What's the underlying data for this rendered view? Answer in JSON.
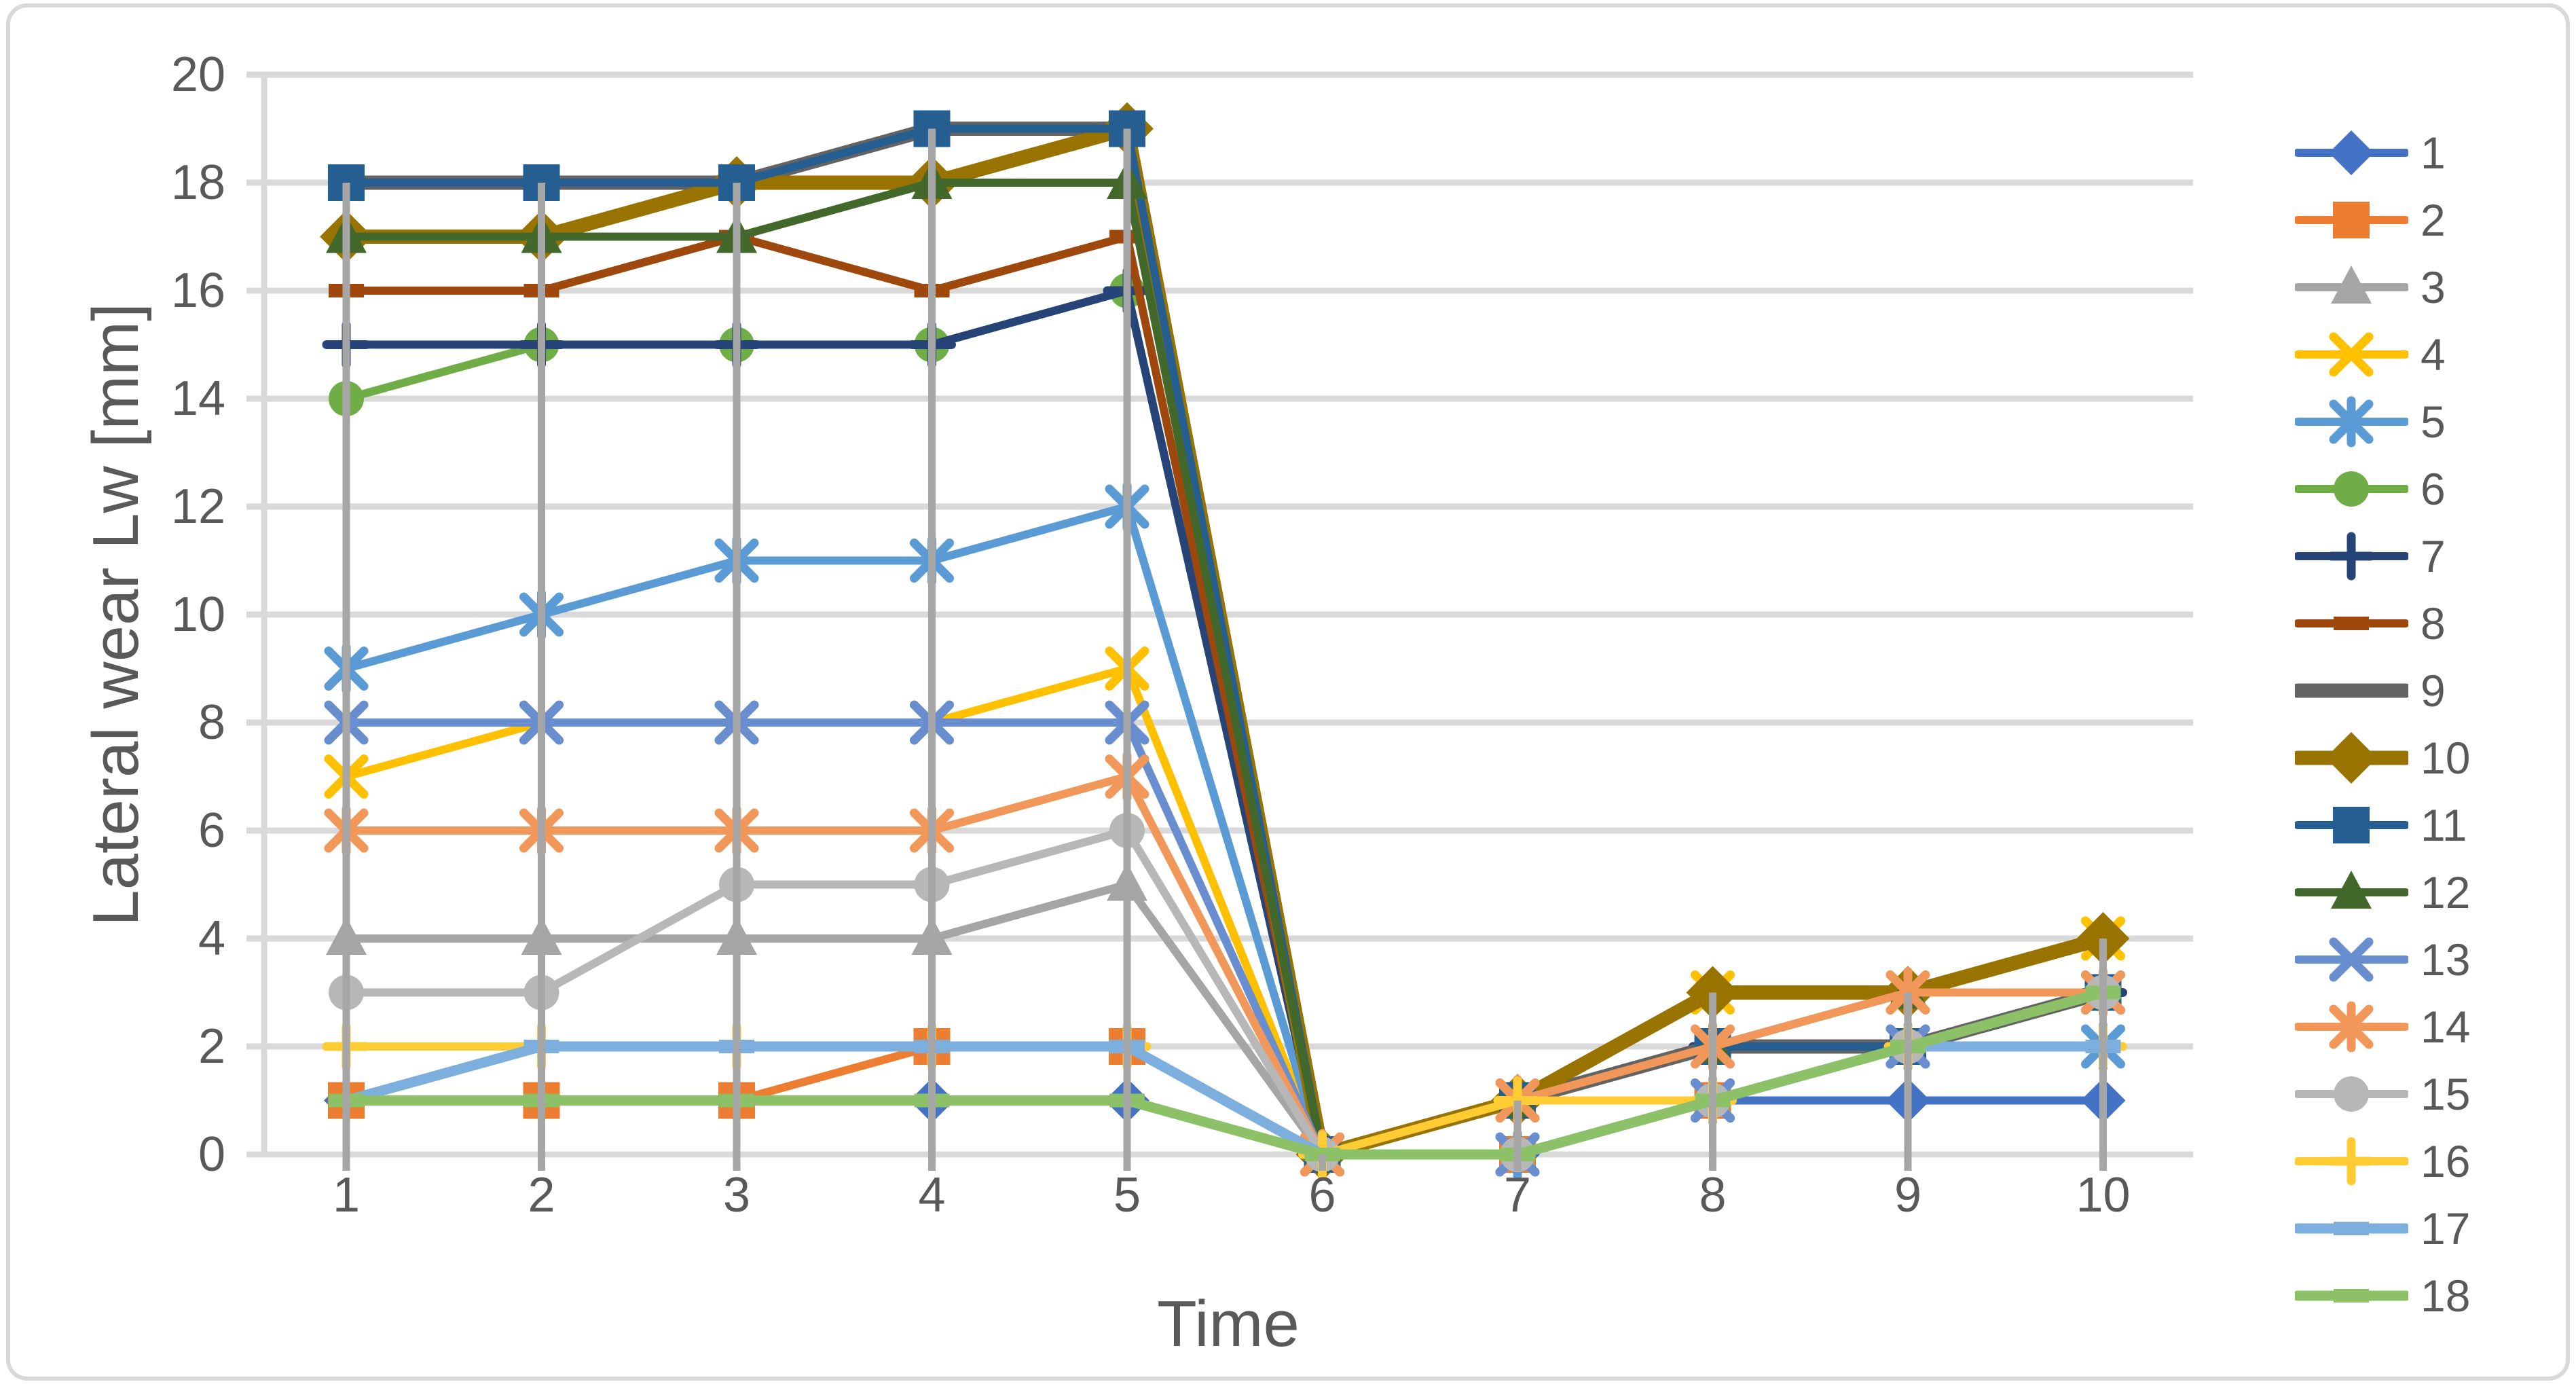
{
  "chart_data": {
    "type": "line",
    "title": "",
    "xlabel": "Time",
    "ylabel": "Lateral wear Lw [mm]",
    "x": [
      1,
      2,
      3,
      4,
      5,
      6,
      7,
      8,
      9,
      10
    ],
    "x_tick_labels": [
      "1",
      "2",
      "3",
      "4",
      "5",
      "6",
      "7",
      "8",
      "9",
      "10"
    ],
    "ylim": [
      0,
      20
    ],
    "y_tick_step": 2,
    "y_tick_labels": [
      "0",
      "2",
      "4",
      "6",
      "8",
      "10",
      "12",
      "14",
      "16",
      "18",
      "20"
    ],
    "grid": "horizontal",
    "drop_lines": true,
    "legend_position": "right",
    "series": [
      {
        "name": "1",
        "color": "#4472C4",
        "marker": "diamond",
        "line_weight": "normal",
        "values": [
          1,
          1,
          1,
          1,
          1,
          0,
          0,
          1,
          1,
          1
        ]
      },
      {
        "name": "2",
        "color": "#ED7D31",
        "marker": "square",
        "line_weight": "normal",
        "values": [
          1,
          1,
          1,
          2,
          2,
          0,
          0,
          1,
          2,
          3
        ]
      },
      {
        "name": "3",
        "color": "#A5A5A5",
        "marker": "triangle",
        "line_weight": "normal",
        "values": [
          4,
          4,
          4,
          4,
          5,
          0,
          0,
          1,
          2,
          3
        ]
      },
      {
        "name": "4",
        "color": "#FFC000",
        "marker": "x",
        "line_weight": "normal",
        "values": [
          7,
          8,
          8,
          8,
          9,
          0,
          1,
          3,
          3,
          4
        ]
      },
      {
        "name": "5",
        "color": "#5B9BD5",
        "marker": "asterisk",
        "line_weight": "normal",
        "values": [
          9,
          10,
          11,
          11,
          12,
          0,
          0,
          1,
          2,
          2
        ]
      },
      {
        "name": "6",
        "color": "#70AD47",
        "marker": "circle",
        "line_weight": "normal",
        "values": [
          14,
          15,
          15,
          15,
          16,
          0,
          1,
          3,
          3,
          4
        ]
      },
      {
        "name": "7",
        "color": "#264478",
        "marker": "plus",
        "line_weight": "normal",
        "values": [
          15,
          15,
          15,
          15,
          16,
          0,
          1,
          2,
          2,
          3
        ]
      },
      {
        "name": "8",
        "color": "#9E480E",
        "marker": "dash",
        "line_weight": "normal",
        "values": [
          16,
          16,
          17,
          16,
          17,
          0,
          1,
          2,
          2,
          3
        ]
      },
      {
        "name": "9",
        "color": "#636363",
        "marker": "none",
        "line_weight": "thick",
        "values": [
          18,
          18,
          18,
          19,
          19,
          0,
          1,
          2,
          2,
          3
        ]
      },
      {
        "name": "10",
        "color": "#997300",
        "marker": "diamond",
        "line_weight": "thick",
        "values": [
          17,
          17,
          18,
          18,
          19,
          0,
          1,
          3,
          3,
          4
        ]
      },
      {
        "name": "11",
        "color": "#255E91",
        "marker": "square",
        "line_weight": "normal",
        "values": [
          18,
          18,
          18,
          19,
          19,
          0,
          1,
          2,
          2,
          3
        ]
      },
      {
        "name": "12",
        "color": "#43682B",
        "marker": "triangle",
        "line_weight": "normal",
        "values": [
          17,
          17,
          17,
          18,
          18,
          0,
          1,
          2,
          3,
          3
        ]
      },
      {
        "name": "13",
        "color": "#698ED0",
        "marker": "x",
        "line_weight": "normal",
        "values": [
          8,
          8,
          8,
          8,
          8,
          0,
          0,
          1,
          2,
          3
        ]
      },
      {
        "name": "14",
        "color": "#F1975A",
        "marker": "asterisk",
        "line_weight": "normal",
        "values": [
          6,
          6,
          6,
          6,
          7,
          0,
          1,
          2,
          3,
          3
        ]
      },
      {
        "name": "15",
        "color": "#B7B7B7",
        "marker": "circle",
        "line_weight": "normal",
        "values": [
          3,
          3,
          5,
          5,
          6,
          0,
          0,
          1,
          2,
          3
        ]
      },
      {
        "name": "16",
        "color": "#FFCD33",
        "marker": "plus",
        "line_weight": "normal",
        "values": [
          2,
          2,
          2,
          2,
          2,
          0,
          1,
          1,
          2,
          2
        ]
      },
      {
        "name": "17",
        "color": "#7CAFDD",
        "marker": "dash",
        "line_weight": "medium",
        "values": [
          1,
          2,
          2,
          2,
          2,
          0,
          0,
          1,
          2,
          2
        ]
      },
      {
        "name": "18",
        "color": "#8CC168",
        "marker": "dash",
        "line_weight": "medium",
        "values": [
          1,
          1,
          1,
          1,
          1,
          0,
          0,
          1,
          2,
          3
        ]
      }
    ]
  },
  "axes": {
    "x_title": "Time",
    "y_title": "Lateral wear Lw [mm]"
  },
  "style": {
    "grid_color": "#D9D9D9",
    "border_color": "#D9D9D9",
    "drop_line_color": "#A6A6A6",
    "axis_text_color": "#595959",
    "background": "#FFFFFF"
  }
}
